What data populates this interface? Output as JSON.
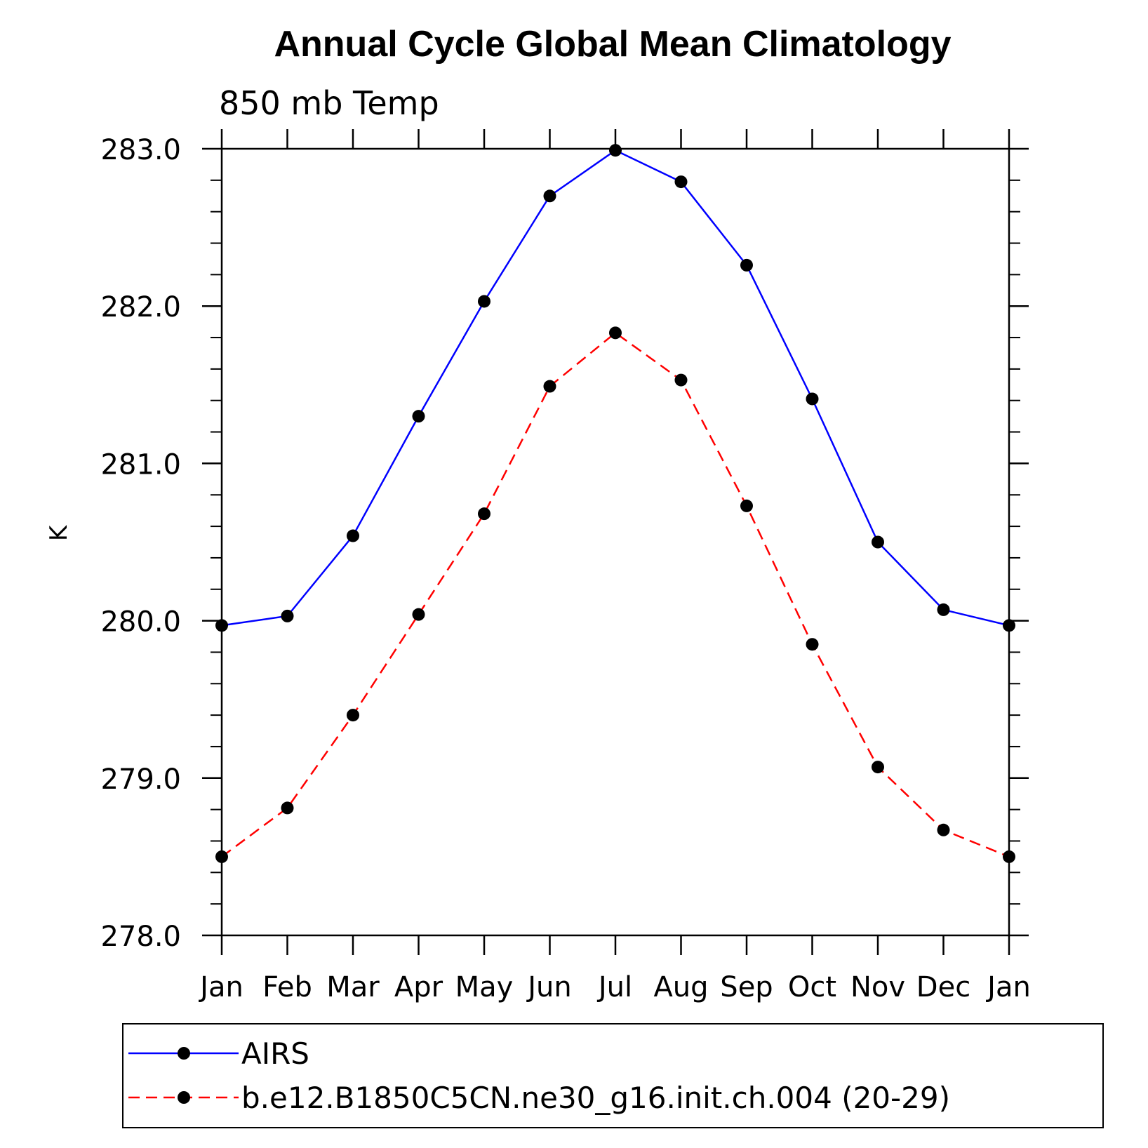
{
  "chart_data": {
    "type": "line",
    "title": "Annual Cycle Global Mean Climatology",
    "subtitle": "850 mb Temp",
    "ylabel": "K",
    "xlabel": "",
    "categories": [
      "Jan",
      "Feb",
      "Mar",
      "Apr",
      "May",
      "Jun",
      "Jul",
      "Aug",
      "Sep",
      "Oct",
      "Nov",
      "Dec",
      "Jan"
    ],
    "ylim": [
      278.0,
      283.0
    ],
    "yticks": [
      "278.0",
      "279.0",
      "280.0",
      "281.0",
      "282.0",
      "283.0"
    ],
    "grid": false,
    "legend_position": "bottom",
    "series": [
      {
        "name": "AIRS",
        "color": "#0000ff",
        "line_style": "solid",
        "marker": "filled-circle",
        "values": [
          279.97,
          280.03,
          280.54,
          281.3,
          282.03,
          282.7,
          282.99,
          282.79,
          282.26,
          281.41,
          280.5,
          280.07,
          279.97
        ]
      },
      {
        "name": "b.e12.B1850C5CN.ne30_g16.init.ch.004 (20-29)",
        "color": "#ff0000",
        "line_style": "dashed",
        "marker": "filled-circle",
        "values": [
          278.5,
          278.81,
          279.4,
          280.04,
          280.68,
          281.49,
          281.83,
          281.53,
          280.73,
          279.85,
          279.07,
          278.67,
          278.5
        ]
      }
    ]
  }
}
